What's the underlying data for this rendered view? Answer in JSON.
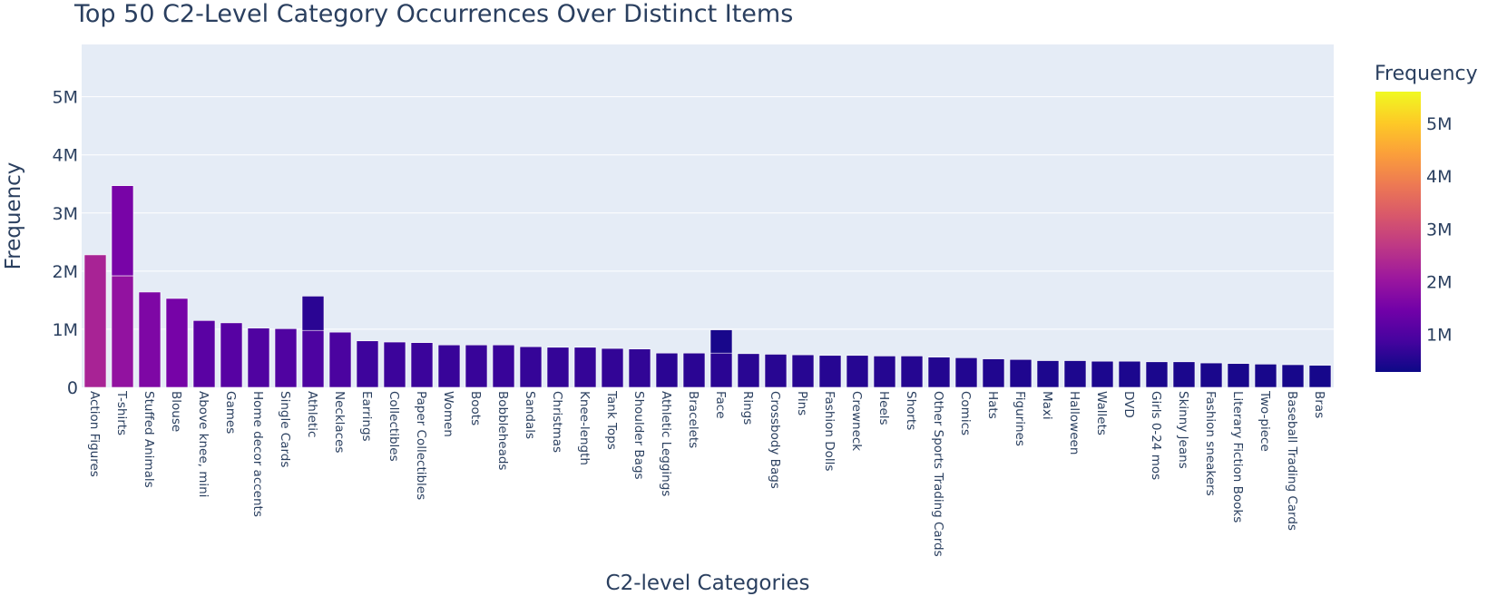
{
  "chart_data": {
    "type": "bar",
    "title": "Top 50 C2-Level Category Occurrences Over Distinct Items",
    "xlabel": "C2-level Categories",
    "ylabel": "Frequency",
    "ylim": [
      0,
      5900000
    ],
    "y_ticks": [
      0,
      1000000,
      2000000,
      3000000,
      4000000,
      5000000
    ],
    "y_tick_labels": [
      "0",
      "1M",
      "2M",
      "3M",
      "4M",
      "5M"
    ],
    "grid": true,
    "legend": "right",
    "colorscale": "plasma",
    "coloraxis": {
      "title": "Frequency",
      "range": [
        290000,
        5600000
      ],
      "ticks": [
        1000000,
        2000000,
        3000000,
        4000000,
        5000000
      ],
      "tick_labels": [
        "1M",
        "2M",
        "3M",
        "4M",
        "5M"
      ],
      "colors": [
        "#0d0887",
        "#46039f",
        "#7201a8",
        "#9c179e",
        "#bd3786",
        "#d8576b",
        "#ed7953",
        "#fb9f3a",
        "#fdca26",
        "#f0f921"
      ]
    },
    "bars": [
      {
        "category": "Action Figures",
        "segments": [
          2280000
        ]
      },
      {
        "category": "T-shirts",
        "segments": [
          1920000,
          1550000
        ]
      },
      {
        "category": "Stuffed Animals",
        "segments": [
          1640000
        ]
      },
      {
        "category": "Blouse",
        "segments": [
          1530000
        ]
      },
      {
        "category": "Above knee, mini",
        "segments": [
          1150000
        ]
      },
      {
        "category": "Games",
        "segments": [
          1110000
        ]
      },
      {
        "category": "Home decor accents",
        "segments": [
          1020000
        ]
      },
      {
        "category": "Single Cards",
        "segments": [
          1010000
        ]
      },
      {
        "category": "Athletic",
        "segments": [
          980000,
          590000
        ]
      },
      {
        "category": "Necklaces",
        "segments": [
          950000
        ]
      },
      {
        "category": "Earrings",
        "segments": [
          800000
        ]
      },
      {
        "category": "Collectibles",
        "segments": [
          780000
        ]
      },
      {
        "category": "Paper Collectibles",
        "segments": [
          770000
        ]
      },
      {
        "category": "Women",
        "segments": [
          730000
        ]
      },
      {
        "category": "Boots",
        "segments": [
          730000
        ]
      },
      {
        "category": "Bobbleheads",
        "segments": [
          730000
        ]
      },
      {
        "category": "Sandals",
        "segments": [
          700000
        ]
      },
      {
        "category": "Christmas",
        "segments": [
          690000
        ]
      },
      {
        "category": "Knee-length",
        "segments": [
          690000
        ]
      },
      {
        "category": "Tank Tops",
        "segments": [
          670000
        ]
      },
      {
        "category": "Shoulder Bags",
        "segments": [
          660000
        ]
      },
      {
        "category": "Athletic Leggings",
        "segments": [
          590000
        ]
      },
      {
        "category": "Bracelets",
        "segments": [
          590000
        ]
      },
      {
        "category": "Face",
        "segments": [
          590000,
          400000
        ]
      },
      {
        "category": "Rings",
        "segments": [
          580000
        ]
      },
      {
        "category": "Crossbody Bags",
        "segments": [
          570000
        ]
      },
      {
        "category": "Pins",
        "segments": [
          560000
        ]
      },
      {
        "category": "Fashion Dolls",
        "segments": [
          550000
        ]
      },
      {
        "category": "Crewneck",
        "segments": [
          550000
        ]
      },
      {
        "category": "Heels",
        "segments": [
          540000
        ]
      },
      {
        "category": "Shorts",
        "segments": [
          540000
        ]
      },
      {
        "category": "Other Sports Trading Cards",
        "segments": [
          520000
        ]
      },
      {
        "category": "Comics",
        "segments": [
          510000
        ]
      },
      {
        "category": "Hats",
        "segments": [
          490000
        ]
      },
      {
        "category": "Figurines",
        "segments": [
          480000
        ]
      },
      {
        "category": "Maxi",
        "segments": [
          460000
        ]
      },
      {
        "category": "Halloween",
        "segments": [
          460000
        ]
      },
      {
        "category": "Wallets",
        "segments": [
          450000
        ]
      },
      {
        "category": "DVD",
        "segments": [
          450000
        ]
      },
      {
        "category": "Girls 0-24 mos",
        "segments": [
          440000
        ]
      },
      {
        "category": "Skinny Jeans",
        "segments": [
          440000
        ]
      },
      {
        "category": "Fashion sneakers",
        "segments": [
          420000
        ]
      },
      {
        "category": "Literary Fiction Books",
        "segments": [
          410000
        ]
      },
      {
        "category": "Two-piece",
        "segments": [
          400000
        ]
      },
      {
        "category": "Baseball Trading Cards",
        "segments": [
          390000
        ]
      },
      {
        "category": "Bras",
        "segments": [
          380000
        ]
      }
    ]
  }
}
